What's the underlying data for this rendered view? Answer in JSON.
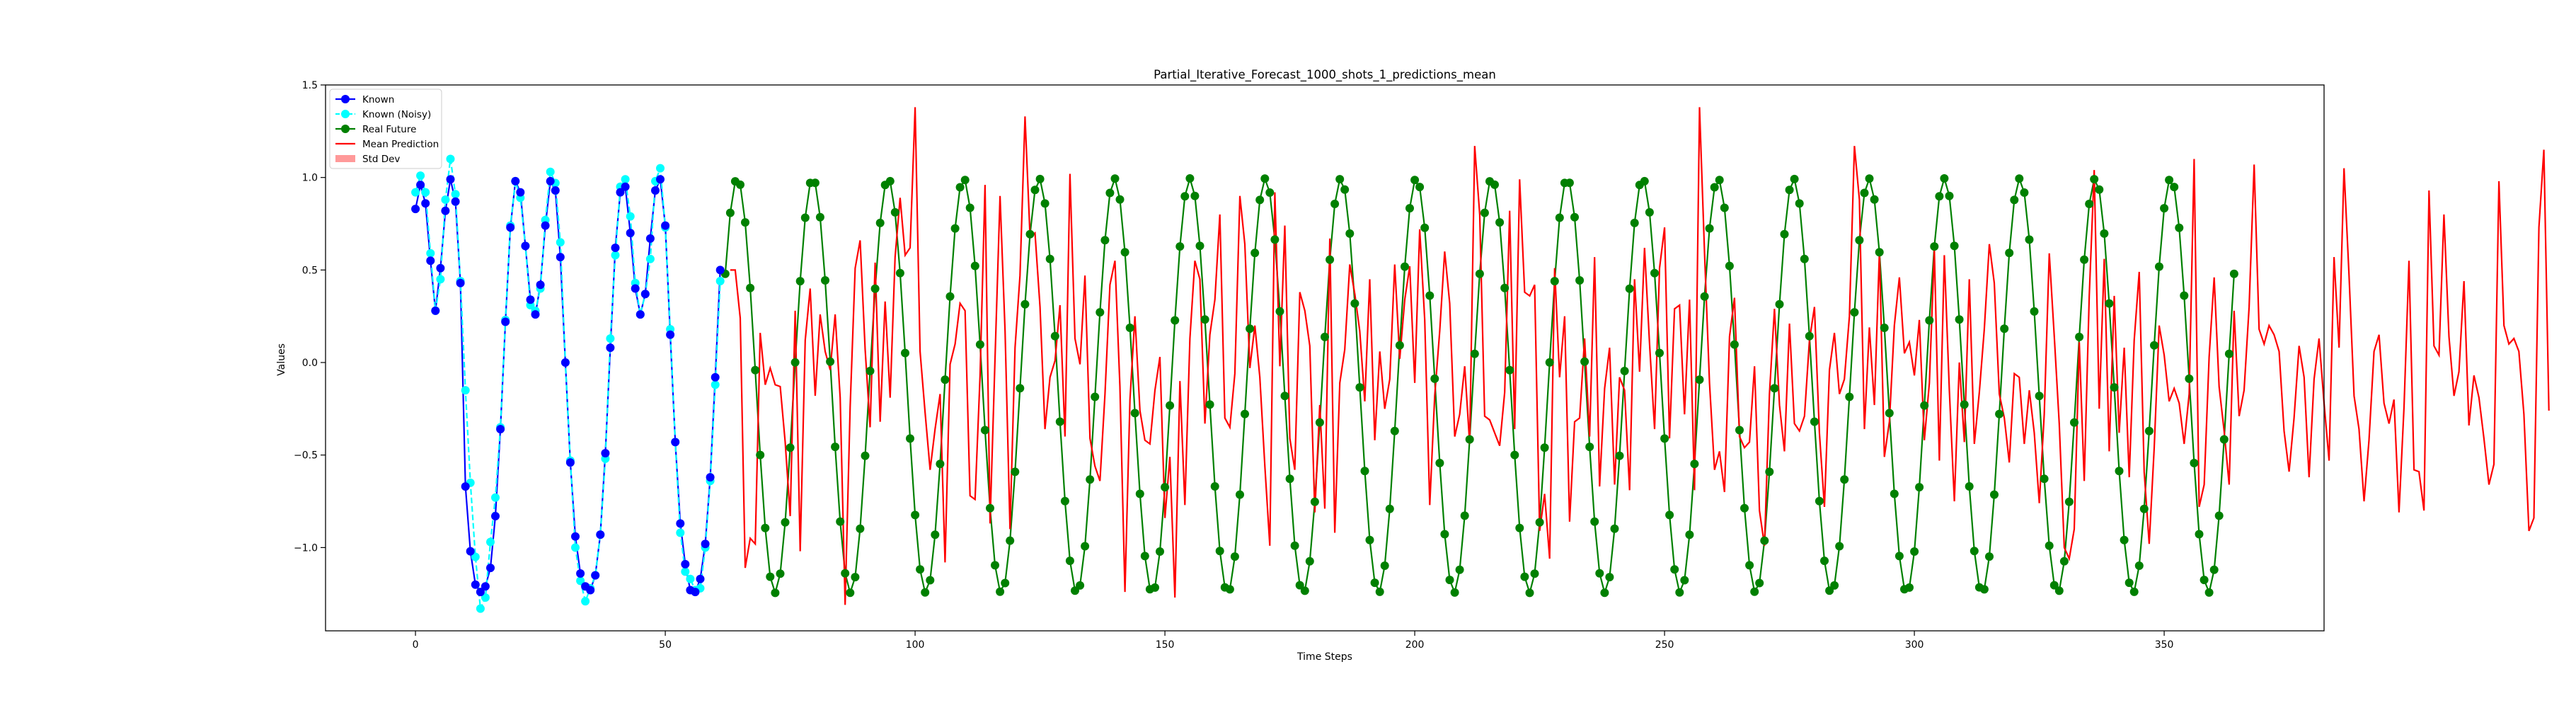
{
  "chart_data": {
    "type": "line",
    "title": "Partial_Iterative_Forecast_1000_shots_1_predictions_mean",
    "xlabel": "Time Steps",
    "ylabel": "Values",
    "xlim": [
      -18,
      382
    ],
    "ylim": [
      -1.45,
      1.5
    ],
    "xticks": [
      0,
      50,
      100,
      150,
      200,
      250,
      300,
      350
    ],
    "yticks": [
      -1.0,
      -0.5,
      0.0,
      0.5,
      1.0,
      1.5
    ],
    "xtick_labels": [
      "0",
      "50",
      "100",
      "150",
      "200",
      "250",
      "300",
      "350"
    ],
    "ytick_labels": [
      "−1.0",
      "−0.5",
      "0.0",
      "0.5",
      "1.0",
      "1.5"
    ],
    "grid": false,
    "legend_position": "top-left",
    "legend": [
      {
        "key": "known",
        "label": "Known",
        "color": "#0000ff",
        "kind": "line-marker"
      },
      {
        "key": "noisy",
        "label": "Known (Noisy)",
        "color": "#00ffff",
        "kind": "dashed-marker"
      },
      {
        "key": "future",
        "label": "Real Future",
        "color": "#008000",
        "kind": "line-marker"
      },
      {
        "key": "mean",
        "label": "Mean Prediction",
        "color": "#ff0000",
        "kind": "line"
      },
      {
        "key": "std",
        "label": "Std Dev",
        "color": "#ff9999",
        "kind": "patch"
      }
    ],
    "series": {
      "known": {
        "name": "Known",
        "color": "#0000ff",
        "x_start": 0,
        "values": [
          0.83,
          0.96,
          0.86,
          0.55,
          0.28,
          0.51,
          0.82,
          0.99,
          0.87,
          0.43,
          -0.67,
          -1.02,
          -1.2,
          -1.24,
          -1.21,
          -1.11,
          -0.83,
          -0.36,
          0.22,
          0.73,
          0.98,
          0.92,
          0.63,
          0.34,
          0.26,
          0.42,
          0.74,
          0.98,
          0.93,
          0.57,
          0.0,
          -0.54,
          -0.94,
          -1.14,
          -1.21,
          -1.23,
          -1.15,
          -0.93,
          -0.49,
          0.08,
          0.62,
          0.92,
          0.95,
          0.7,
          0.4,
          0.26,
          0.37,
          0.67,
          0.93,
          0.99,
          0.74,
          0.15,
          -0.43,
          -0.87,
          -1.09,
          -1.23,
          -1.24,
          -1.17,
          -0.98,
          -0.62,
          -0.08,
          0.5
        ]
      },
      "noisy": {
        "name": "Known (Noisy)",
        "color": "#00ffff",
        "x_start": 0,
        "values": [
          0.92,
          1.01,
          0.92,
          0.59,
          0.28,
          0.45,
          0.88,
          1.1,
          0.91,
          0.44,
          -0.15,
          -0.65,
          -1.05,
          -1.33,
          -1.27,
          -0.97,
          -0.73,
          -0.35,
          0.23,
          0.74,
          0.98,
          0.89,
          0.63,
          0.31,
          0.28,
          0.4,
          0.77,
          1.03,
          0.97,
          0.65,
          0.0,
          -0.53,
          -1.0,
          -1.18,
          -1.29,
          -1.22,
          -1.15,
          -0.93,
          -0.52,
          0.13,
          0.58,
          0.95,
          0.99,
          0.79,
          0.43,
          0.26,
          0.37,
          0.56,
          0.98,
          1.05,
          0.73,
          0.18,
          -0.43,
          -0.92,
          -1.13,
          -1.17,
          -1.23,
          -1.22,
          -1.0,
          -0.64,
          -0.12,
          0.44
        ]
      },
      "future_x_start": 62,
      "future_period": 15.1,
      "mean_x_start": 63,
      "mean": {
        "name": "Mean Prediction",
        "color": "#ff0000",
        "values": [
          0.5,
          0.5,
          0.24,
          -1.11,
          -0.95,
          -0.98,
          0.16,
          -0.12,
          -0.03,
          -0.12,
          -0.13,
          -0.43,
          -0.83,
          0.28,
          -1.02,
          0.12,
          0.4,
          -0.18,
          0.26,
          0.06,
          -0.04,
          0.26,
          -0.19,
          -1.31,
          -0.24,
          0.51,
          0.66,
          0.07,
          -0.35,
          0.54,
          -0.32,
          0.33,
          -0.19,
          0.57,
          0.89,
          0.58,
          0.62,
          1.38,
          0.06,
          -0.27,
          -0.58,
          -0.36,
          -0.17,
          -1.08,
          -0.01,
          0.1,
          0.32,
          0.28,
          -0.72,
          -0.74,
          -0.07,
          0.96,
          -0.87,
          0.02,
          0.9,
          0.17,
          -0.9,
          0.08,
          0.47,
          1.33,
          0.68,
          0.7,
          0.3,
          -0.36,
          -0.08,
          0.01,
          0.31,
          -0.4,
          1.02,
          0.13,
          -0.01,
          0.47,
          -0.41,
          -0.56,
          -0.64,
          -0.17,
          0.42,
          0.55,
          -0.13,
          -1.24,
          -0.2,
          0.25,
          -0.26,
          -0.42,
          -0.44,
          -0.15,
          0.03,
          -0.84,
          -0.51,
          -1.27,
          -0.1,
          -0.77,
          0.13,
          0.55,
          0.45,
          -0.33,
          0.15,
          0.34,
          0.8,
          -0.3,
          -0.35,
          -0.06,
          0.9,
          0.64,
          -0.03,
          0.2,
          -0.08,
          -0.56,
          -0.99,
          0.92,
          -0.02,
          0.74,
          -0.41,
          -0.58,
          0.38,
          0.28,
          0.09,
          -0.81,
          -0.23,
          -0.79,
          0.67,
          -0.92,
          -0.11,
          0.07,
          0.53,
          0.37,
          0.17,
          -0.21,
          0.45,
          -0.42,
          0.06,
          -0.25,
          -0.09,
          0.53,
          0.02,
          0.34,
          0.52,
          -0.11,
          0.72,
          0.23,
          -0.77,
          -0.18,
          0.17,
          0.6,
          0.32,
          -0.4,
          -0.28,
          -0.02,
          -0.44,
          1.17,
          0.8,
          -0.29,
          -0.31,
          -0.38,
          -0.45,
          -0.16,
          0.82,
          -0.36,
          0.99,
          0.38,
          0.36,
          0.42,
          -0.91,
          -0.71,
          -1.06,
          0.51,
          -0.08,
          0.25,
          -0.86,
          -0.32,
          -0.3,
          0.13,
          -0.4,
          0.57,
          -0.67,
          -0.14,
          0.08,
          -0.66,
          -0.08,
          -0.15,
          -0.69,
          0.45,
          -0.05,
          0.62,
          0.1,
          -0.36,
          0.51,
          0.73,
          -0.41,
          0.29,
          0.31,
          -0.28,
          0.34,
          -0.69,
          1.38,
          0.59,
          -0.11,
          -0.58,
          -0.48,
          -0.7,
          0.14,
          0.35,
          -0.4,
          -0.46,
          -0.43,
          -0.02,
          -0.8,
          -0.99,
          -0.17,
          0.29,
          -0.23,
          -0.48,
          0.21,
          -0.33,
          -0.37,
          -0.29,
          0.12,
          0.3,
          -0.38,
          -0.78,
          -0.04,
          0.16,
          -0.17,
          -0.09,
          0.25,
          1.17,
          0.88,
          -0.36,
          0.19,
          -0.23,
          0.6,
          -0.51,
          -0.32,
          0.2,
          0.46,
          0.05,
          0.11,
          -0.07,
          0.23,
          -0.42,
          -0.11,
          0.61,
          -0.53,
          0.58,
          -0.15,
          -0.75,
          0.0,
          -0.43,
          0.45,
          -0.44,
          -0.16,
          0.18,
          0.64,
          0.43,
          -0.17,
          -0.3,
          -0.54,
          -0.06,
          -0.08,
          -0.44,
          -0.15,
          -0.38,
          -0.76,
          -0.28,
          0.59,
          0.14,
          -0.33,
          -1.0,
          -1.06,
          -0.9,
          0.11,
          -0.64,
          0.36,
          1.04,
          -0.25,
          0.56,
          -0.48,
          0.36,
          -0.38,
          0.08,
          -0.62,
          0.12,
          0.49,
          -0.59,
          -0.98,
          -0.46,
          0.2,
          0.04,
          -0.21,
          -0.14,
          -0.22,
          -0.44,
          -0.17,
          1.1,
          -0.78,
          -0.66,
          0.03,
          0.46,
          -0.13,
          -0.37,
          -0.66,
          0.28,
          -0.29,
          -0.15,
          0.3,
          1.07,
          0.18,
          0.1,
          0.2,
          0.15,
          0.06,
          -0.37,
          -0.59,
          -0.3,
          0.09,
          -0.08,
          -0.62,
          -0.09,
          0.13,
          -0.22,
          -0.53,
          0.57,
          0.08,
          1.05,
          0.47,
          -0.18,
          -0.36,
          -0.75,
          -0.42,
          0.06,
          0.15,
          -0.22,
          -0.33,
          -0.2,
          -0.81,
          -0.24,
          0.55,
          -0.58,
          -0.59,
          -0.8,
          0.93,
          0.09,
          0.04,
          0.8,
          0.14,
          -0.18,
          -0.05,
          0.44,
          -0.34,
          -0.07,
          -0.19,
          -0.41,
          -0.66,
          -0.55,
          0.98,
          0.2,
          0.1,
          0.13,
          0.06,
          -0.28,
          -0.91,
          -0.84,
          0.73,
          1.15,
          -0.26
        ]
      }
    }
  }
}
